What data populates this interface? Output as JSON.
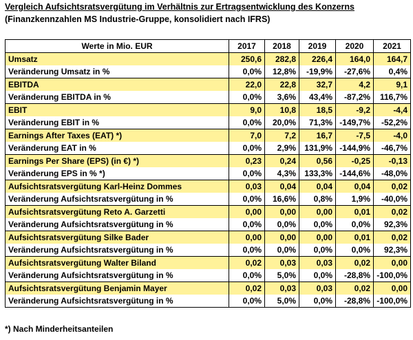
{
  "title": "Vergleich Aufsichtsratsvergütung im Verhältnis zur Ertragsentwicklung des Konzerns",
  "subtitle": "(Finanzkennzahlen MS Industrie-Gruppe, konsolidiert nach IFRS)",
  "table": {
    "header_label": "Werte in Mio. EUR",
    "years": [
      "2017",
      "2018",
      "2019",
      "2020",
      "2021"
    ],
    "rows": [
      {
        "label": "Umsatz",
        "values": [
          "250,6",
          "282,8",
          "226,4",
          "164,0",
          "164,7"
        ],
        "main": true
      },
      {
        "label": "Veränderung Umsatz in %",
        "values": [
          "0,0%",
          "12,8%",
          "-19,9%",
          "-27,6%",
          "0,4%"
        ],
        "main": false
      },
      {
        "label": "EBITDA",
        "values": [
          "22,0",
          "22,8",
          "32,7",
          "4,2",
          "9,1"
        ],
        "main": true
      },
      {
        "label": "Veränderung EBITDA in %",
        "values": [
          "0,0%",
          "3,6%",
          "43,4%",
          "-87,2%",
          "116,7%"
        ],
        "main": false
      },
      {
        "label": "EBIT",
        "values": [
          "9,0",
          "10,8",
          "18,5",
          "-9,2",
          "-4,4"
        ],
        "main": true
      },
      {
        "label": "Veränderung EBIT in %",
        "values": [
          "0,0%",
          "20,0%",
          "71,3%",
          "-149,7%",
          "-52,2%"
        ],
        "main": false
      },
      {
        "label": "Earnings After Taxes (EAT) *)",
        "values": [
          "7,0",
          "7,2",
          "16,7",
          "-7,5",
          "-4,0"
        ],
        "main": true
      },
      {
        "label": "Veränderung EAT in %",
        "values": [
          "0,0%",
          "2,9%",
          "131,9%",
          "-144,9%",
          "-46,7%"
        ],
        "main": false
      },
      {
        "label": "Earnings Per Share (EPS) (in €) *)",
        "values": [
          "0,23",
          "0,24",
          "0,56",
          "-0,25",
          "-0,13"
        ],
        "main": true
      },
      {
        "label": "Veränderung EPS in % *)",
        "values": [
          "0,0%",
          "4,3%",
          "133,3%",
          "-144,6%",
          "-48,0%"
        ],
        "main": false
      },
      {
        "label": "Aufsichtsratsvergütung Karl-Heinz Dommes",
        "values": [
          "0,03",
          "0,04",
          "0,04",
          "0,04",
          "0,02"
        ],
        "main": true
      },
      {
        "label": "Veränderung Aufsichtsratsvergütung in %",
        "values": [
          "0,0%",
          "16,6%",
          "0,8%",
          "1,9%",
          "-40,0%"
        ],
        "main": false
      },
      {
        "label": "Aufsichtsratsvergütung Reto A. Garzetti",
        "values": [
          "0,00",
          "0,00",
          "0,00",
          "0,01",
          "0,02"
        ],
        "main": true
      },
      {
        "label": "Veränderung Aufsichtsratsvergütung in %",
        "values": [
          "0,0%",
          "0,0%",
          "0,0%",
          "0,0%",
          "92,3%"
        ],
        "main": false
      },
      {
        "label": "Aufsichtsratsvergütung Silke Bader",
        "values": [
          "0,00",
          "0,00",
          "0,00",
          "0,01",
          "0,02"
        ],
        "main": true
      },
      {
        "label": "Veränderung Aufsichtsratsvergütung in %",
        "values": [
          "0,0%",
          "0,0%",
          "0,0%",
          "0,0%",
          "92,3%"
        ],
        "main": false
      },
      {
        "label": "Aufsichtsratsvergütung Walter Biland",
        "values": [
          "0,02",
          "0,03",
          "0,03",
          "0,02",
          "0,00"
        ],
        "main": true
      },
      {
        "label": "Veränderung Aufsichtsratsvergütung in %",
        "values": [
          "0,0%",
          "5,0%",
          "0,0%",
          "-28,8%",
          "-100,0%"
        ],
        "main": false
      },
      {
        "label": "Aufsichtsratsvergütung Benjamin Mayer",
        "values": [
          "0,02",
          "0,03",
          "0,03",
          "0,02",
          "0,00"
        ],
        "main": true
      },
      {
        "label": "Veränderung Aufsichtsratsvergütung in %",
        "values": [
          "0,0%",
          "5,0%",
          "0,0%",
          "-28,8%",
          "-100,0%"
        ],
        "main": false
      }
    ]
  },
  "footnote": "*) Nach Minderheitsanteilen",
  "colors": {
    "highlight": "#fff29a"
  }
}
